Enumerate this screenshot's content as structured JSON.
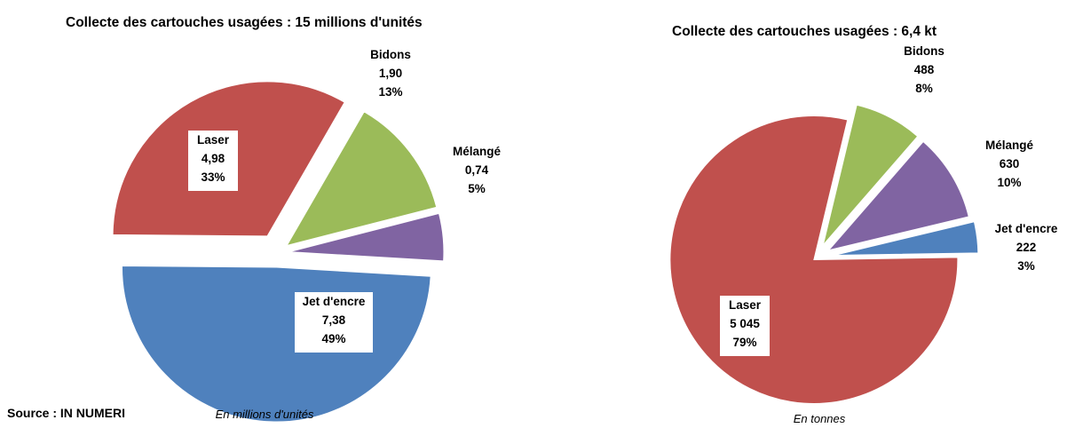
{
  "chart_data": [
    {
      "type": "pie",
      "title": "Collecte des cartouches usagées : 15 millions d'unités",
      "unit_note": "En millions d'unités",
      "slices": [
        {
          "name": "Bidons",
          "value": 1.9,
          "value_label": "1,90",
          "percent": 13,
          "percent_label": "13%",
          "color": "#9bbb59"
        },
        {
          "name": "Mélangé",
          "value": 0.74,
          "value_label": "0,74",
          "percent": 5,
          "percent_label": "5%",
          "color": "#8064a2"
        },
        {
          "name": "Jet d'encre",
          "value": 7.38,
          "value_label": "7,38",
          "percent": 49,
          "percent_label": "49%",
          "color": "#4f81bd"
        },
        {
          "name": "Laser",
          "value": 4.98,
          "value_label": "4,98",
          "percent": 33,
          "percent_label": "33%",
          "color": "#c0504d"
        }
      ]
    },
    {
      "type": "pie",
      "title": "Collecte des cartouches usagées : 6,4 kt",
      "unit_note": "En  tonnes",
      "slices": [
        {
          "name": "Bidons",
          "value": 488,
          "value_label": "488",
          "percent": 8,
          "percent_label": "8%",
          "color": "#9bbb59"
        },
        {
          "name": "Mélangé",
          "value": 630,
          "value_label": "630",
          "percent": 10,
          "percent_label": "10%",
          "color": "#8064a2"
        },
        {
          "name": "Jet d'encre",
          "value": 222,
          "value_label": "222",
          "percent": 3,
          "percent_label": "3%",
          "color": "#4f81bd"
        },
        {
          "name": "Laser",
          "value": 5045,
          "value_label": "5 045",
          "percent": 79,
          "percent_label": "79%",
          "color": "#c0504d"
        }
      ]
    }
  ],
  "source": "Source : IN NUMERI"
}
